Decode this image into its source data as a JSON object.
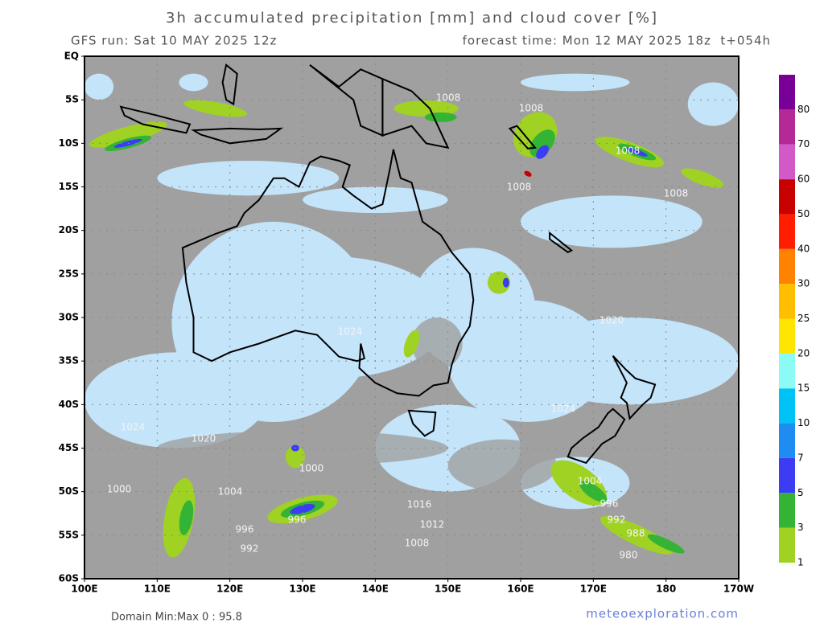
{
  "header": {
    "title": "3h accumulated precipitation [mm] and cloud cover [%]",
    "run": "GFS run: Sat 10 MAY 2025 12z",
    "forecast": "forecast time: Mon 12 MAY 2025 18z  t+054h"
  },
  "map": {
    "lon_range": [
      100,
      190
    ],
    "lat_range": [
      0,
      -60
    ],
    "lat_ticks": [
      {
        "value": 0,
        "label": "EQ"
      },
      {
        "value": -5,
        "label": "5S"
      },
      {
        "value": -10,
        "label": "10S"
      },
      {
        "value": -15,
        "label": "15S"
      },
      {
        "value": -20,
        "label": "20S"
      },
      {
        "value": -25,
        "label": "25S"
      },
      {
        "value": -30,
        "label": "30S"
      },
      {
        "value": -35,
        "label": "35S"
      },
      {
        "value": -40,
        "label": "40S"
      },
      {
        "value": -45,
        "label": "45S"
      },
      {
        "value": -50,
        "label": "50S"
      },
      {
        "value": -55,
        "label": "55S"
      },
      {
        "value": -60,
        "label": "60S"
      }
    ],
    "lon_ticks": [
      {
        "value": 100,
        "label": "100E"
      },
      {
        "value": 110,
        "label": "110E"
      },
      {
        "value": 120,
        "label": "120E"
      },
      {
        "value": 130,
        "label": "130E"
      },
      {
        "value": 140,
        "label": "140E"
      },
      {
        "value": 150,
        "label": "150E"
      },
      {
        "value": 160,
        "label": "160E"
      },
      {
        "value": 170,
        "label": "170E"
      },
      {
        "value": 180,
        "label": "180"
      },
      {
        "value": 190,
        "label": "170W"
      }
    ],
    "isobar_labels": [
      "1008",
      "1008",
      "1008",
      "1008",
      "1008",
      "1020",
      "1024",
      "1024",
      "1024",
      "1020",
      "1000",
      "1004",
      "1000",
      "996",
      "996",
      "992",
      "1016",
      "1012",
      "1008",
      "1004",
      "996",
      "992",
      "988",
      "980"
    ]
  },
  "colorbar": {
    "levels": [
      1,
      3,
      5,
      7,
      10,
      15,
      20,
      25,
      30,
      40,
      50,
      60,
      70,
      80
    ],
    "colors": [
      "#a0d223",
      "#34b434",
      "#3c3cf5",
      "#1e8cf0",
      "#00c3f5",
      "#8cfaf5",
      "#ffe600",
      "#ffbe00",
      "#ff8200",
      "#ff1e00",
      "#c80000",
      "#d25ac8",
      "#b42898",
      "#780096"
    ]
  },
  "footer": {
    "domain": "Domain Min:Max 0 : 95.8",
    "site": "meteoexploration.com"
  }
}
